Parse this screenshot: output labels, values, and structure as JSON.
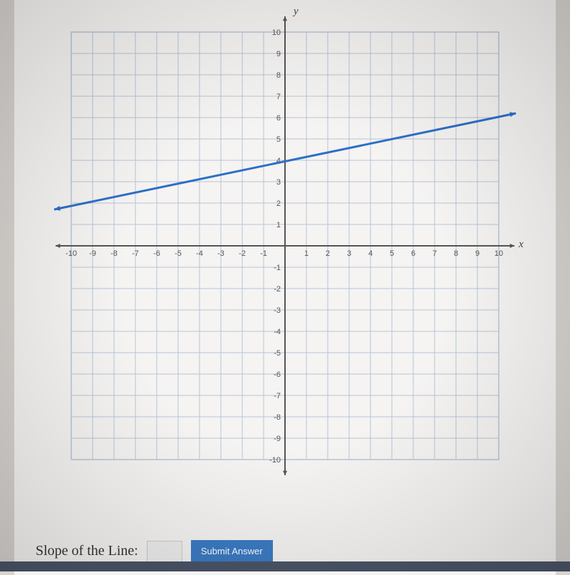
{
  "chart": {
    "type": "line",
    "xlim": [
      -11,
      11
    ],
    "ylim": [
      -11,
      11
    ],
    "xticks": [
      -10,
      -9,
      -8,
      -7,
      -6,
      -5,
      -4,
      -3,
      -2,
      -1,
      1,
      2,
      3,
      4,
      5,
      6,
      7,
      8,
      9,
      10
    ],
    "yticks": [
      -10,
      -9,
      -8,
      -7,
      -6,
      -5,
      -4,
      -3,
      -2,
      -1,
      1,
      2,
      3,
      4,
      5,
      6,
      7,
      8,
      9,
      10
    ],
    "xtick_labels": [
      "-10",
      "-9",
      "-8",
      "-7",
      "-6",
      "-5",
      "-4",
      "-3",
      "-2",
      "-1",
      "1",
      "2",
      "3",
      "4",
      "5",
      "6",
      "7",
      "8",
      "9",
      "10"
    ],
    "ytick_labels": [
      "-10",
      "-9",
      "-8",
      "-7",
      "-6",
      "-5",
      "-4",
      "-3",
      "-2",
      "-1",
      "1",
      "2",
      "3",
      "4",
      "5",
      "6",
      "7",
      "8",
      "9",
      "10"
    ],
    "grid_min": -10,
    "grid_max": 10,
    "x_axis_label": "x",
    "y_axis_label": "y",
    "line_points": [
      [
        -10.8,
        1.7
      ],
      [
        10.8,
        6.2
      ]
    ],
    "line_color": "#2d6fc9",
    "grid_color": "#b8c4d8",
    "axis_color": "#555555",
    "background_color": "#f5f4f2",
    "tick_fontsize": 11,
    "axis_label_fontsize": 15,
    "line_width": 3,
    "has_line_arrows": true
  },
  "answer": {
    "label": "Slope of the Line:",
    "value": "",
    "submit_label": "Submit Answer"
  }
}
